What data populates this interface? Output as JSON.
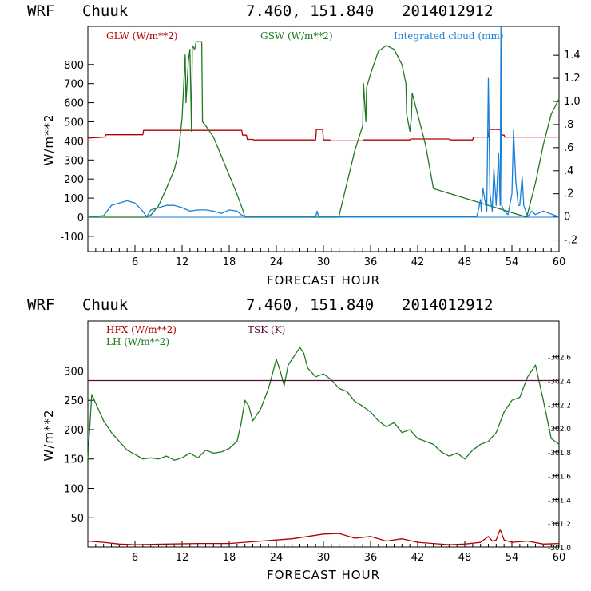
{
  "panels": [
    {
      "header": {
        "model": "WRF",
        "station": "Chuuk",
        "coords": "7.460, 151.840",
        "init": "2014012912"
      },
      "legend": {
        "glw": "GLW (W/m**2)",
        "gsw": "GSW (W/m**2)",
        "cloud": "Integrated cloud (mm)"
      },
      "ylabel": "W/m**2",
      "xlabel": "FORECAST HOUR"
    },
    {
      "header": {
        "model": "WRF",
        "station": "Chuuk",
        "coords": "7.460, 151.840",
        "init": "2014012912"
      },
      "legend": {
        "hfx": "HFX (W/m**2)",
        "lh": "LH  (W/m**2)",
        "tsk": "TSK (K)"
      },
      "ylabel": "W/m**2",
      "xlabel": "FORECAST HOUR"
    }
  ],
  "colors": {
    "glw": "#b00000",
    "gsw": "#1e7a1e",
    "cloud": "#1a7fd6",
    "hfx": "#b00000",
    "lh": "#1e7a1e",
    "tsk": "#5a0a3a",
    "axis": "#000000"
  },
  "chart_data": [
    {
      "type": "line",
      "title": "WRF Chuuk 7.460, 151.840 2014012912",
      "xlabel": "FORECAST HOUR",
      "ylabel": "W/m**2",
      "y2label": "Integrated cloud (mm)",
      "xlim": [
        0,
        60
      ],
      "ylim": [
        -180,
        1000
      ],
      "y2lim": [
        -0.3,
        1.65
      ],
      "xticks": [
        6,
        12,
        18,
        24,
        30,
        36,
        42,
        48,
        54,
        60
      ],
      "yticks": [
        -100,
        0,
        100,
        200,
        300,
        400,
        500,
        600,
        700,
        800
      ],
      "y2ticks": [
        -0.2,
        0,
        0.2,
        0.4,
        0.6,
        0.8,
        1.0,
        1.2,
        1.4
      ],
      "y2ticklabels": [
        "-.2",
        "0",
        ".2",
        ".4",
        ".6",
        ".8",
        "1.0",
        "1.2",
        "1.4"
      ],
      "series": [
        {
          "name": "GLW (W/m**2)",
          "key": "glw",
          "axis": "left",
          "x": [
            0,
            2.2,
            2.3,
            7,
            7.1,
            19.6,
            19.7,
            20.2,
            20.3,
            21,
            21.1,
            29,
            29.1,
            29.9,
            30,
            30.8,
            30.9,
            35,
            35.1,
            41,
            41.1,
            46,
            46.1,
            49,
            49.1,
            51,
            51.1,
            52.5,
            52.6,
            53,
            53.1,
            60
          ],
          "y": [
            415,
            420,
            432,
            432,
            455,
            455,
            430,
            430,
            408,
            408,
            405,
            405,
            460,
            460,
            405,
            405,
            400,
            400,
            405,
            405,
            410,
            410,
            405,
            405,
            420,
            420,
            460,
            460,
            430,
            430,
            420,
            420
          ]
        },
        {
          "name": "GSW (W/m**2)",
          "key": "gsw",
          "axis": "left",
          "x": [
            0,
            7.5,
            8,
            9,
            10,
            11,
            11.5,
            12,
            12.4,
            12.5,
            12.8,
            13,
            13.2,
            13.3,
            13.6,
            13.8,
            14.1,
            14.5,
            14.6,
            15,
            16,
            17,
            18,
            19,
            19.8,
            20,
            31.9,
            32,
            33,
            34,
            35,
            35.1,
            35.4,
            35.5,
            36,
            37,
            38,
            39,
            40,
            40.5,
            40.6,
            41,
            41.2,
            41.3,
            42,
            43,
            44,
            55.9,
            56,
            57,
            58,
            59,
            60
          ],
          "y": [
            0,
            0,
            10,
            60,
            150,
            250,
            330,
            520,
            850,
            600,
            820,
            880,
            450,
            900,
            880,
            920,
            920,
            920,
            500,
            480,
            420,
            320,
            220,
            120,
            30,
            0,
            0,
            10,
            180,
            350,
            480,
            700,
            500,
            680,
            750,
            870,
            900,
            880,
            800,
            700,
            540,
            450,
            520,
            650,
            540,
            380,
            150,
            0,
            20,
            180,
            380,
            540,
            620
          ]
        },
        {
          "name": "Integrated cloud (mm)",
          "key": "cloud",
          "axis": "right",
          "x": [
            0,
            2,
            3,
            5,
            6,
            7,
            7.5,
            8,
            9,
            10,
            11,
            12,
            13,
            14,
            15,
            16,
            17,
            18,
            19,
            19.5,
            20,
            29,
            29.2,
            29.4,
            30,
            49.5,
            49.8,
            50,
            50.1,
            50.3,
            50.8,
            51,
            51.2,
            51.5,
            51.7,
            52,
            52.3,
            52.5,
            52.6,
            52.7,
            53,
            53.5,
            54,
            54.2,
            54.5,
            54.8,
            55,
            55.3,
            55.5,
            56,
            56.5,
            57,
            58,
            60
          ],
          "y": [
            0,
            0.01,
            0.1,
            0.14,
            0.12,
            0.05,
            0.0,
            0.06,
            0.08,
            0.1,
            0.1,
            0.08,
            0.05,
            0.06,
            0.06,
            0.05,
            0.03,
            0.06,
            0.05,
            0.02,
            0,
            0,
            0.05,
            0,
            0,
            0,
            0.08,
            0.15,
            0.05,
            0.25,
            0.05,
            1.2,
            0.2,
            0.05,
            0.42,
            0.1,
            0.55,
            0.1,
            1.65,
            0.1,
            0.05,
            0.02,
            0.2,
            0.75,
            0.3,
            0.1,
            0.1,
            0.35,
            0.1,
            0,
            0.05,
            0.02,
            0.05,
            0.0
          ]
        }
      ]
    },
    {
      "type": "line",
      "title": "WRF Chuuk 7.460, 151.840 2014012912",
      "xlabel": "FORECAST HOUR",
      "ylabel": "W/m**2",
      "y2label": "TSK (K)",
      "xlim": [
        0,
        60
      ],
      "ylim": [
        0,
        385
      ],
      "y2lim": [
        301.0,
        302.9
      ],
      "xticks": [
        6,
        12,
        18,
        24,
        30,
        36,
        42,
        48,
        54,
        60
      ],
      "yticks": [
        50,
        100,
        150,
        200,
        250,
        300
      ],
      "y2ticks": [
        301.0,
        301.2,
        301.4,
        301.6,
        301.8,
        302.0,
        302.2,
        302.4,
        302.6
      ],
      "y2ticklabels": [
        "-301.0",
        "-301.2",
        "-301.4",
        "-301.6",
        "-301.8",
        "-302.0",
        "-302.2",
        "-302.4",
        "-302.6"
      ],
      "series": [
        {
          "name": "HFX (W/m**2)",
          "key": "hfx",
          "axis": "left",
          "x": [
            0,
            2,
            4,
            6,
            10,
            14,
            18,
            20,
            22,
            24,
            26,
            28,
            30,
            32,
            34,
            36,
            38,
            40,
            42,
            44,
            46,
            48,
            50,
            51,
            51.5,
            52,
            52.5,
            53,
            54,
            56,
            58,
            60
          ],
          "y": [
            10,
            8,
            5,
            4,
            5,
            6,
            6,
            8,
            10,
            12,
            14,
            18,
            22,
            23,
            15,
            18,
            10,
            14,
            8,
            6,
            4,
            5,
            8,
            18,
            10,
            12,
            30,
            12,
            8,
            10,
            5,
            6
          ]
        },
        {
          "name": "LH  (W/m**2)",
          "key": "lh",
          "axis": "left",
          "x": [
            0,
            0.5,
            1,
            2,
            3,
            4,
            5,
            6,
            7,
            8,
            9,
            10,
            11,
            12,
            13,
            14,
            15,
            16,
            17,
            18,
            19,
            19.5,
            20,
            20.5,
            21,
            22,
            23,
            24,
            24.5,
            25,
            25.5,
            26,
            27,
            27.5,
            28,
            29,
            30,
            31,
            32,
            33,
            34,
            35,
            36,
            37,
            38,
            39,
            40,
            41,
            42,
            43,
            44,
            45,
            46,
            47,
            48,
            49,
            50,
            51,
            52,
            53,
            53.5,
            54,
            55,
            56,
            57,
            58,
            59,
            60
          ],
          "y": [
            150,
            260,
            245,
            215,
            195,
            180,
            165,
            158,
            150,
            152,
            150,
            155,
            148,
            152,
            160,
            152,
            165,
            160,
            162,
            168,
            180,
            210,
            250,
            240,
            215,
            235,
            270,
            320,
            300,
            275,
            310,
            320,
            340,
            330,
            305,
            290,
            295,
            285,
            270,
            265,
            248,
            240,
            230,
            215,
            205,
            212,
            195,
            200,
            185,
            180,
            175,
            162,
            155,
            160,
            150,
            165,
            175,
            180,
            195,
            230,
            240,
            250,
            255,
            290,
            310,
            250,
            185,
            175
          ]
        },
        {
          "name": "TSK (K)",
          "key": "tsk",
          "axis": "right",
          "x": [
            0,
            60
          ],
          "y": [
            302.4,
            302.4
          ]
        }
      ]
    }
  ]
}
